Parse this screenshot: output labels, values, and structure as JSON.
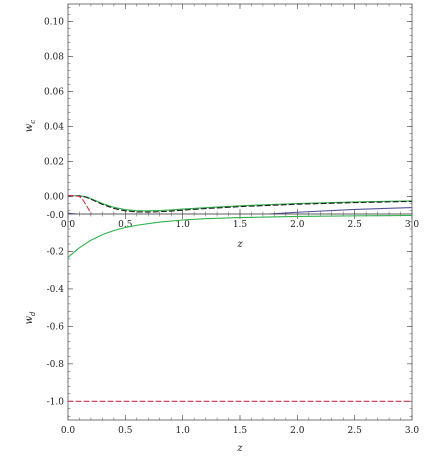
{
  "chart_data": [
    {
      "type": "line",
      "xlabel": "z",
      "ylabel": "w_c",
      "ylabel_main": "w",
      "ylabel_sub": "c",
      "xlim": [
        0,
        3
      ],
      "ylim": [
        -0.01,
        0.11
      ],
      "x_ticks": [
        0.0,
        0.5,
        1.0,
        1.5,
        2.0,
        2.5,
        3.0
      ],
      "x_tick_labels": [
        "0.0",
        "0.5",
        "1.0",
        "1.5",
        "2.0",
        "2.5",
        "3.0"
      ],
      "y_ticks": [
        0.0,
        0.02,
        0.04,
        0.06,
        0.08,
        0.1
      ],
      "y_tick_labels": [
        "0.00",
        "0.02",
        "0.04",
        "0.06",
        "0.08",
        "0.10"
      ],
      "grid": false,
      "series": [
        {
          "color": "#55509a",
          "dash": "solid",
          "x": [
            0.0,
            0.1,
            0.2,
            0.3,
            0.4,
            0.5,
            0.6,
            0.7,
            0.8,
            0.9,
            1.0,
            1.2,
            1.5,
            1.8,
            2.0,
            2.5,
            3.0
          ],
          "y": [
            -0.0095,
            -0.0102,
            -0.0115,
            -0.013,
            -0.0143,
            -0.0152,
            -0.0155,
            -0.0154,
            -0.015,
            -0.0145,
            -0.0139,
            -0.0128,
            -0.0112,
            -0.0098,
            -0.009,
            -0.0074,
            -0.0063
          ]
        },
        {
          "color": "#2db34a",
          "dash": "solid",
          "x": [
            0.0,
            0.1,
            0.15,
            0.2,
            0.3,
            0.4,
            0.5,
            0.6,
            0.7,
            0.8,
            0.9,
            1.0,
            1.2,
            1.5,
            2.0,
            2.5,
            3.0
          ],
          "y": [
            0.0005,
            0.0004,
            0.0,
            -0.0012,
            -0.004,
            -0.0062,
            -0.0075,
            -0.0081,
            -0.0082,
            -0.008,
            -0.0077,
            -0.0072,
            -0.0064,
            -0.0053,
            -0.004,
            -0.0031,
            -0.0025
          ]
        },
        {
          "color": "#222222",
          "dash": "dash",
          "x": [
            0.0,
            0.1,
            0.15,
            0.2,
            0.3,
            0.4,
            0.5,
            0.6,
            0.7,
            0.8,
            0.9,
            1.0,
            1.2,
            1.5,
            2.0,
            2.5,
            3.0
          ],
          "y": [
            0.0004,
            0.0003,
            -0.0002,
            -0.0015,
            -0.0045,
            -0.0068,
            -0.0082,
            -0.0088,
            -0.0089,
            -0.0087,
            -0.0083,
            -0.0078,
            -0.0069,
            -0.0058,
            -0.0044,
            -0.0035,
            -0.0028
          ]
        },
        {
          "color": "#d0304a",
          "dash": "dash",
          "x": [
            0.0,
            0.06,
            0.1,
            0.13,
            0.16,
            0.19,
            0.22
          ],
          "y": [
            0.0005,
            0.0004,
            0.0,
            -0.002,
            -0.005,
            -0.0085,
            -0.012
          ]
        }
      ]
    },
    {
      "type": "line",
      "xlabel": "z",
      "ylabel": "w_d",
      "ylabel_main": "w",
      "ylabel_sub": "d",
      "xlim": [
        0,
        3
      ],
      "ylim": [
        -1.1,
        0.0
      ],
      "x_ticks": [
        0.0,
        0.5,
        1.0,
        1.5,
        2.0,
        2.5,
        3.0
      ],
      "x_tick_labels": [
        "0.0",
        "0.5",
        "1.0",
        "1.5",
        "2.0",
        "2.5",
        "3.0"
      ],
      "y_ticks": [
        -1.0,
        -0.8,
        -0.6,
        -0.4,
        -0.2
      ],
      "y_tick_labels": [
        "-1.0",
        "-0.8",
        "-0.6",
        "-0.4",
        "-0.2"
      ],
      "overlap_tick_label": "-0.0",
      "grid": false,
      "series": [
        {
          "color": "#2db34a",
          "dash": "solid",
          "x": [
            0.0,
            0.05,
            0.1,
            0.2,
            0.3,
            0.4,
            0.5,
            0.6,
            0.8,
            1.0,
            1.2,
            1.5,
            2.0,
            2.5,
            3.0
          ],
          "y": [
            -0.232,
            -0.205,
            -0.18,
            -0.14,
            -0.11,
            -0.088,
            -0.072,
            -0.06,
            -0.043,
            -0.032,
            -0.025,
            -0.019,
            -0.013,
            -0.01,
            -0.008
          ]
        },
        {
          "color": "#d0304a",
          "dash": "dash",
          "x": [
            0.0,
            3.0
          ],
          "y": [
            -1.0,
            -1.0
          ]
        }
      ]
    }
  ]
}
